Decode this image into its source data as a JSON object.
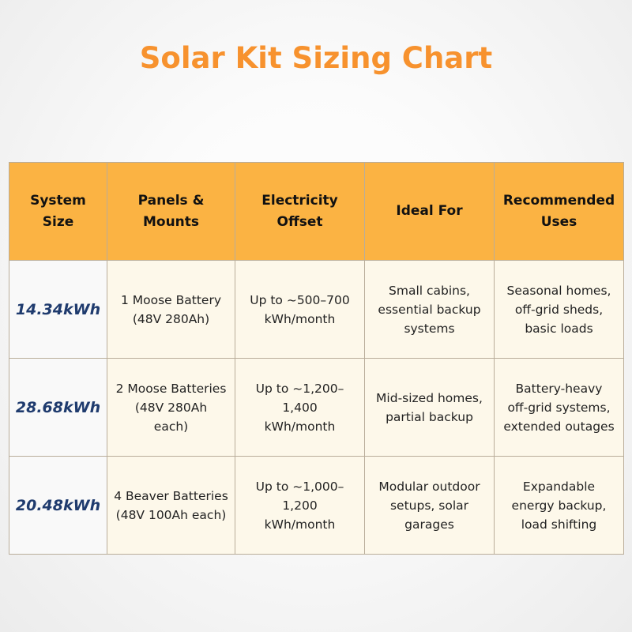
{
  "title": "Solar Kit Sizing Chart",
  "table": {
    "headers": [
      [
        "System",
        "Size"
      ],
      [
        "Panels &",
        "Mounts"
      ],
      [
        "Electricity",
        "Offset"
      ],
      [
        "Ideal For"
      ],
      [
        "Recommended",
        "Uses"
      ]
    ],
    "rows": [
      {
        "size": "14.34kWh",
        "panels": [
          "1 Moose Battery",
          "(48V 280Ah)"
        ],
        "offset": [
          "Up to ~500–700",
          "kWh/month"
        ],
        "ideal": [
          "Small cabins,",
          "essential backup",
          "systems"
        ],
        "uses": [
          "Seasonal homes,",
          "off-grid sheds,",
          "basic loads"
        ]
      },
      {
        "size": "28.68kWh",
        "panels": [
          "2 Moose Batteries",
          "(48V 280Ah",
          "each)"
        ],
        "offset": [
          "Up to ~1,200–1,400",
          "kWh/month"
        ],
        "ideal": [
          "Mid-sized homes,",
          "partial backup"
        ],
        "uses": [
          "Battery-heavy",
          "off-grid systems,",
          "extended outages"
        ]
      },
      {
        "size": "20.48kWh",
        "panels": [
          "4 Beaver Batteries",
          "(48V 100Ah each)"
        ],
        "offset": [
          "Up to ~1,000–1,200",
          "kWh/month"
        ],
        "ideal": [
          "Modular outdoor",
          "setups, solar",
          "garages"
        ],
        "uses": [
          "Expandable",
          "energy backup,",
          "load shifting"
        ]
      }
    ]
  },
  "colors": {
    "title": "#f7922e",
    "header_bg": "#fbb343",
    "cell_bg": "#fdf8ea",
    "size_text": "#1f3b6e"
  }
}
